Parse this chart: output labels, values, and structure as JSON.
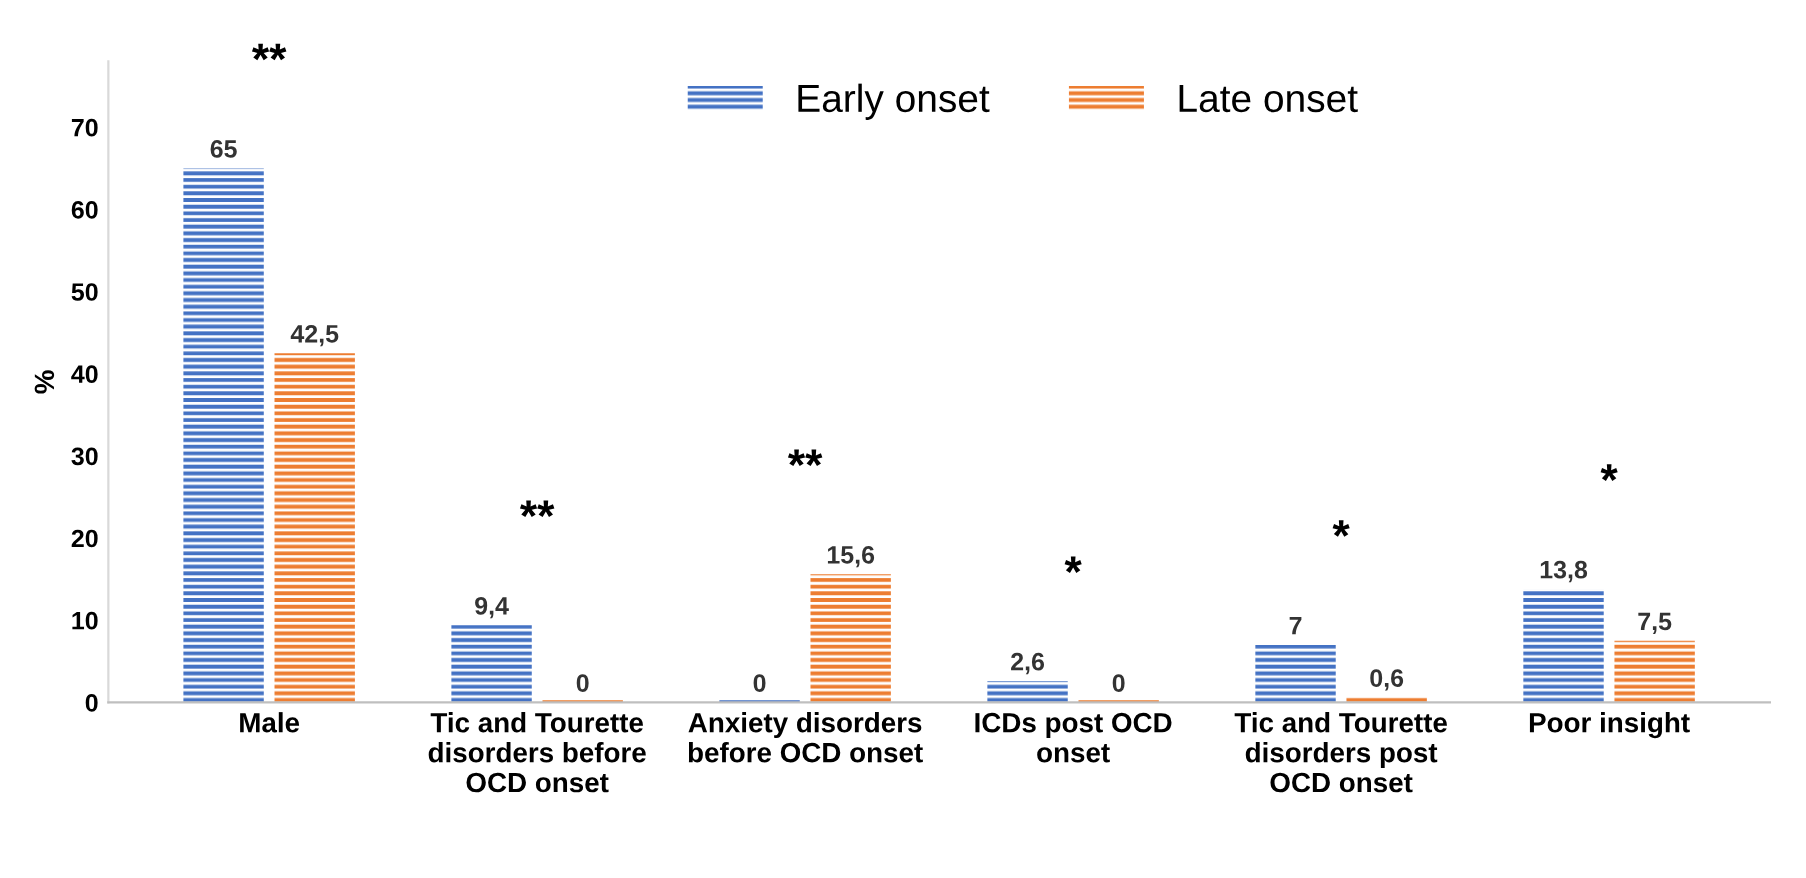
{
  "chart_data": {
    "type": "bar",
    "ylabel": "%",
    "categories": [
      "Male",
      "Tic and Tourette\ndisorders before\nOCD onset",
      "Anxiety disorders\nbefore OCD onset",
      "ICDs post OCD\nonset",
      "Tic and Tourette\ndisorders post\nOCD onset",
      "Poor insight"
    ],
    "series": [
      {
        "name": "Early onset",
        "color": "#4472c4",
        "values": [
          65,
          9.4,
          0,
          2.6,
          7,
          13.8
        ],
        "value_labels": [
          "65",
          "9,4",
          "0",
          "2,6",
          "7",
          "13,8"
        ]
      },
      {
        "name": "Late onset",
        "color": "#ed7d31",
        "values": [
          42.5,
          0,
          15.6,
          0,
          0.6,
          7.5
        ],
        "value_labels": [
          "42,5",
          "0",
          "15,6",
          "0",
          "0,6",
          "7,5"
        ]
      }
    ],
    "ylim": [
      0,
      78
    ],
    "yticks": [
      0,
      10,
      20,
      30,
      40,
      50,
      60,
      70
    ],
    "grid": false,
    "legend": "top",
    "annotations": [
      "**",
      "**",
      "**",
      "*",
      "*",
      "*"
    ]
  }
}
